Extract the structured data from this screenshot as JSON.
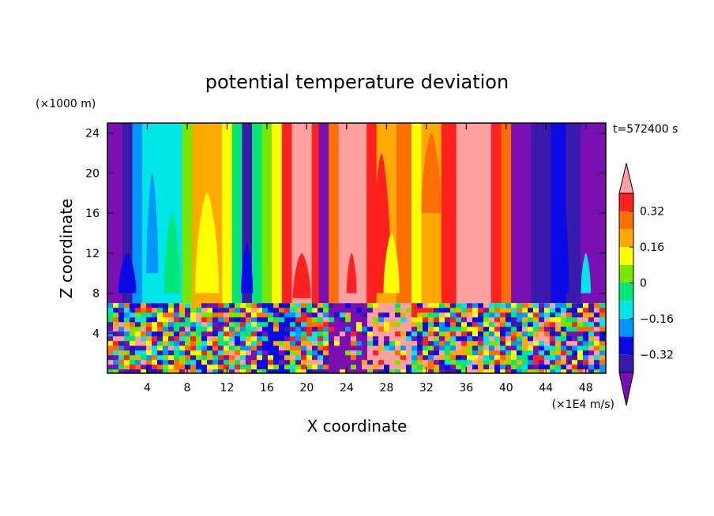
{
  "chart_data": {
    "type": "heatmap",
    "title": "potential temperature deviation",
    "time_label": "t=572400 s",
    "xlabel": "X coordinate",
    "ylabel": "Z coordinate",
    "x_unit": "(×1E4 m/s)",
    "y_unit": "(×1000 m)",
    "xlim": [
      0,
      50
    ],
    "ylim": [
      0,
      25
    ],
    "x_ticks": [
      "4",
      "8",
      "12",
      "16",
      "20",
      "24",
      "28",
      "32",
      "36",
      "40",
      "44",
      "48"
    ],
    "y_ticks": [
      "4",
      "8",
      "12",
      "16",
      "20",
      "24"
    ],
    "colorbar": {
      "levels": [
        -0.4,
        -0.32,
        -0.24,
        -0.16,
        -0.08,
        0,
        0.08,
        0.16,
        0.24,
        0.32,
        0.4
      ],
      "tick_labels": [
        "0.32",
        "0.16",
        "0",
        "−0.16",
        "−0.32"
      ],
      "tick_values": [
        0.32,
        0.16,
        0,
        -0.16,
        -0.32
      ],
      "colors": [
        "#7a10b4",
        "#3a1aaa",
        "#0a0ae6",
        "#0096ff",
        "#00e6e6",
        "#00e678",
        "#78e600",
        "#ffff00",
        "#ffaa00",
        "#ff6e00",
        "#ff2020",
        "#ffa0a0"
      ],
      "extend": "both"
    },
    "upper_columns": [
      {
        "x0": 0,
        "x1": 1.5,
        "color": "#7a10b4"
      },
      {
        "x0": 1.5,
        "x1": 2.5,
        "color": "#3a1aaa"
      },
      {
        "x0": 2.5,
        "x1": 3.5,
        "color": "#0096ff"
      },
      {
        "x0": 3.5,
        "x1": 7.5,
        "color": "#00e6e6"
      },
      {
        "x0": 7.5,
        "x1": 8.5,
        "color": "#78e600"
      },
      {
        "x0": 8.5,
        "x1": 11.5,
        "color": "#ffaa00"
      },
      {
        "x0": 11.5,
        "x1": 12.5,
        "color": "#ffff00"
      },
      {
        "x0": 12.5,
        "x1": 13.5,
        "color": "#00e678"
      },
      {
        "x0": 13.5,
        "x1": 14.5,
        "color": "#3a1aaa"
      },
      {
        "x0": 14.5,
        "x1": 15.5,
        "color": "#00e678"
      },
      {
        "x0": 15.5,
        "x1": 16.5,
        "color": "#78e600"
      },
      {
        "x0": 16.5,
        "x1": 17.5,
        "color": "#ffff00"
      },
      {
        "x0": 17.5,
        "x1": 18.5,
        "color": "#ff2020"
      },
      {
        "x0": 18.5,
        "x1": 20.5,
        "color": "#ffa0a0"
      },
      {
        "x0": 20.5,
        "x1": 21.2,
        "color": "#ff2020"
      },
      {
        "x0": 21.2,
        "x1": 22.2,
        "color": "#7a10b4"
      },
      {
        "x0": 22.2,
        "x1": 23.2,
        "color": "#ff6e00"
      },
      {
        "x0": 23.2,
        "x1": 26.0,
        "color": "#ffa0a0"
      },
      {
        "x0": 26.0,
        "x1": 27.0,
        "color": "#ff2020"
      },
      {
        "x0": 27.0,
        "x1": 29.0,
        "color": "#ffaa00"
      },
      {
        "x0": 29.0,
        "x1": 30.5,
        "color": "#ff6e00"
      },
      {
        "x0": 30.5,
        "x1": 31.5,
        "color": "#ffff00"
      },
      {
        "x0": 31.5,
        "x1": 33.5,
        "color": "#ffaa00"
      },
      {
        "x0": 33.5,
        "x1": 35.0,
        "color": "#ff2020"
      },
      {
        "x0": 35.0,
        "x1": 38.5,
        "color": "#ffa0a0"
      },
      {
        "x0": 38.5,
        "x1": 39.5,
        "color": "#ff2020"
      },
      {
        "x0": 39.5,
        "x1": 40.5,
        "color": "#ff6e00"
      },
      {
        "x0": 40.5,
        "x1": 42.5,
        "color": "#7a10b4"
      },
      {
        "x0": 42.5,
        "x1": 44.5,
        "color": "#3a1aaa"
      },
      {
        "x0": 44.5,
        "x1": 46.0,
        "color": "#0a0ae6"
      },
      {
        "x0": 46.0,
        "x1": 47.5,
        "color": "#3a1aaa"
      },
      {
        "x0": 47.5,
        "x1": 50,
        "color": "#7a10b4"
      }
    ]
  }
}
